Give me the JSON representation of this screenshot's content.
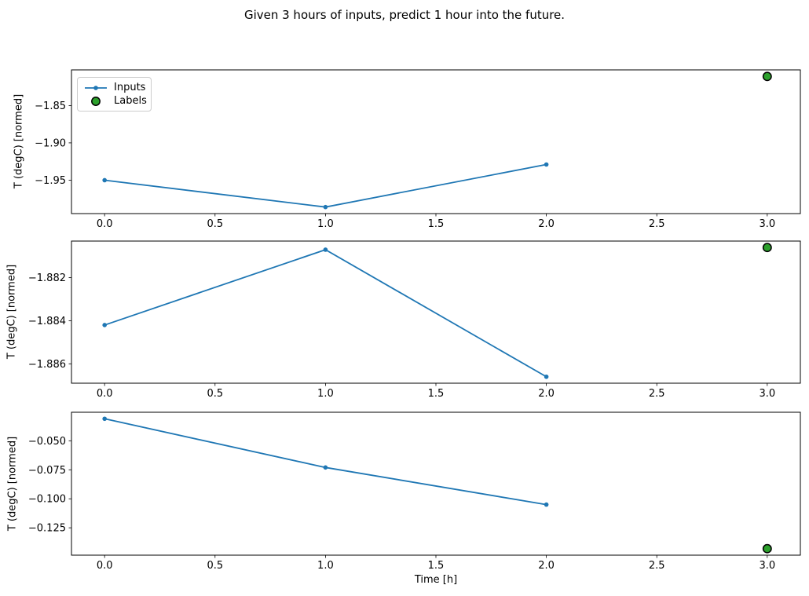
{
  "figure": {
    "title": "Given 3 hours of inputs, predict 1 hour into the future.",
    "xlabel": "Time [h]",
    "ylabel": "T (degC) [normed]",
    "xtick_labels": [
      "0.0",
      "0.5",
      "1.0",
      "1.5",
      "2.0",
      "2.5",
      "3.0"
    ],
    "legend": {
      "position": "upper-left-first-subplot",
      "entries": [
        {
          "label": "Inputs",
          "marker": "line-with-dot",
          "color": "#1f77b4"
        },
        {
          "label": "Labels",
          "marker": "circle",
          "color": "#2ca02c"
        }
      ]
    },
    "colors": {
      "inputs_line": "#1f77b4",
      "labels_fill": "#2ca02c",
      "labels_edge": "#000000",
      "spine": "#000000"
    }
  },
  "chart_data": [
    {
      "type": "line",
      "subplot": 1,
      "x": [
        0,
        1,
        2
      ],
      "series": [
        {
          "name": "Inputs",
          "values": [
            -1.95,
            -1.986,
            -1.929
          ]
        }
      ],
      "labels_point": {
        "x": 3,
        "y": -1.811
      },
      "ylabel": "T (degC) [normed]",
      "xlim": [
        -0.15,
        3.15
      ],
      "xticks": [
        0,
        0.5,
        1,
        1.5,
        2,
        2.5,
        3
      ],
      "yticks": [
        -1.85,
        -1.9,
        -1.95
      ],
      "ytick_labels": [
        "−1.85",
        "−1.90",
        "−1.95"
      ],
      "grid": false
    },
    {
      "type": "line",
      "subplot": 2,
      "x": [
        0,
        1,
        2
      ],
      "series": [
        {
          "name": "Inputs",
          "values": [
            -1.8842,
            -1.8807,
            -1.8866
          ]
        }
      ],
      "labels_point": {
        "x": 3,
        "y": -1.8806
      },
      "ylabel": "T (degC) [normed]",
      "xlim": [
        -0.15,
        3.15
      ],
      "xticks": [
        0,
        0.5,
        1,
        1.5,
        2,
        2.5,
        3
      ],
      "yticks": [
        -1.882,
        -1.884,
        -1.886
      ],
      "ytick_labels": [
        "−1.882",
        "−1.884",
        "−1.886"
      ],
      "grid": false
    },
    {
      "type": "line",
      "subplot": 3,
      "x": [
        0,
        1,
        2
      ],
      "series": [
        {
          "name": "Inputs",
          "values": [
            -0.031,
            -0.073,
            -0.105
          ]
        }
      ],
      "labels_point": {
        "x": 3,
        "y": -0.143
      },
      "xlabel": "Time [h]",
      "ylabel": "T (degC) [normed]",
      "xlim": [
        -0.15,
        3.15
      ],
      "xticks": [
        0,
        0.5,
        1,
        1.5,
        2,
        2.5,
        3
      ],
      "yticks": [
        -0.05,
        -0.075,
        -0.1,
        -0.125
      ],
      "ytick_labels": [
        "−0.050",
        "−0.075",
        "−0.100",
        "−0.125"
      ],
      "grid": false
    }
  ]
}
